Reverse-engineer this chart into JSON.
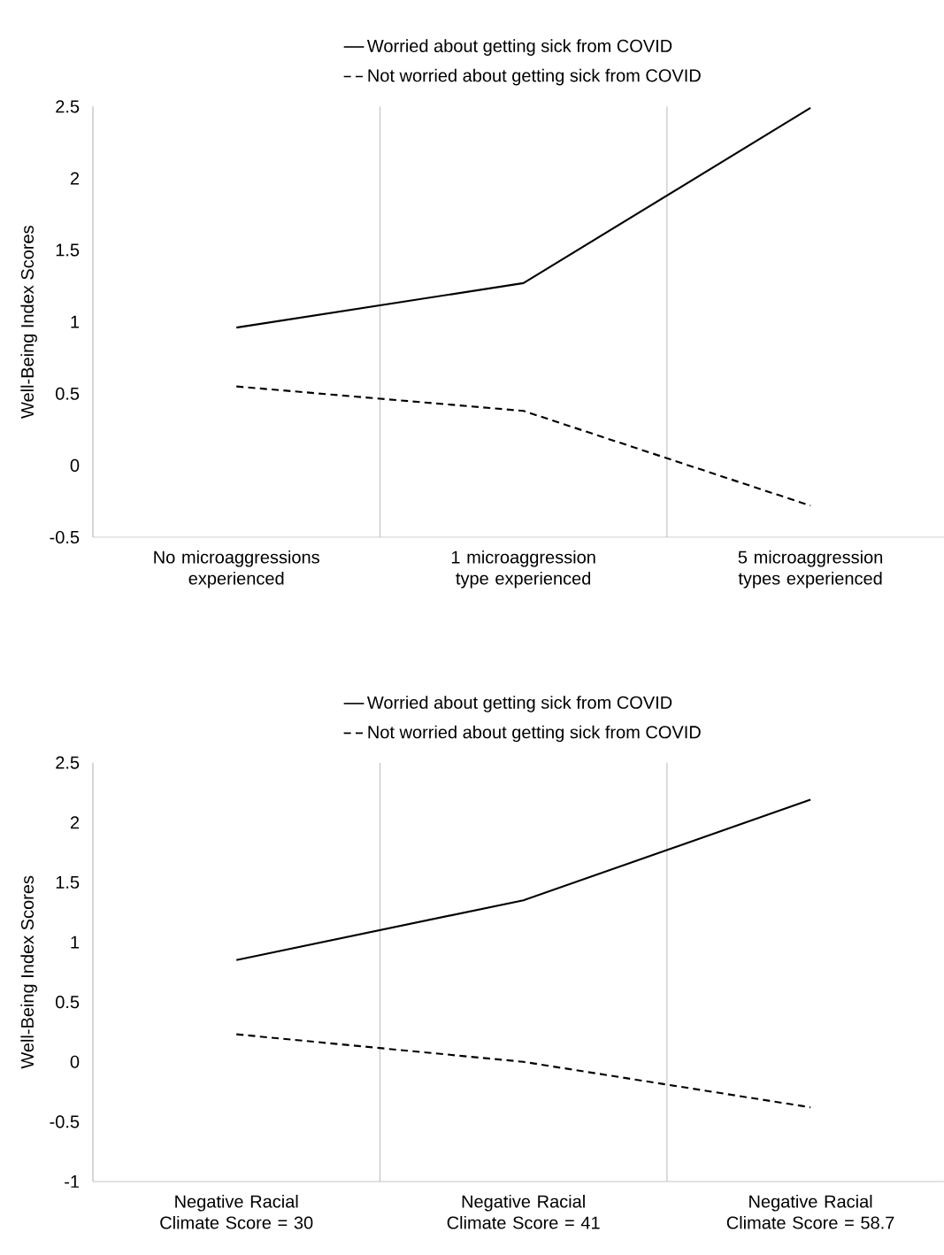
{
  "chart_data": [
    {
      "type": "line",
      "ylabel": "Well-Being Index Scores",
      "categories": [
        "No microaggressions experienced",
        "1 microaggression type experienced",
        "5 microaggression types experienced"
      ],
      "series": [
        {
          "name": "Worried about getting sick from COVID",
          "color": "#000000",
          "line_style": "solid",
          "values": [
            0.96,
            1.27,
            2.49
          ]
        },
        {
          "name": "Not worried about getting sick from COVID",
          "color": "#000000",
          "line_style": "dashed",
          "values": [
            0.55,
            0.38,
            -0.28
          ]
        }
      ],
      "ylim": [
        -0.5,
        2.5
      ],
      "yticks": [
        -0.5,
        0,
        0.5,
        1,
        1.5,
        2,
        2.5
      ],
      "grid": "x",
      "legend": "top"
    },
    {
      "type": "line",
      "ylabel": "Well-Being Index Scores",
      "categories": [
        "Negative Racial Climate Score = 30",
        "Negative Racial Climate Score = 41",
        "Negative Racial Climate Score = 58.7"
      ],
      "series": [
        {
          "name": "Worried about getting sick from COVID",
          "color": "#000000",
          "line_style": "solid",
          "values": [
            0.85,
            1.35,
            2.19
          ]
        },
        {
          "name": "Not worried about getting sick from COVID",
          "color": "#000000",
          "line_style": "dashed",
          "values": [
            0.23,
            0.0,
            -0.38
          ]
        }
      ],
      "ylim": [
        -1,
        2.5
      ],
      "yticks": [
        -1,
        -0.5,
        0,
        0.5,
        1,
        1.5,
        2,
        2.5
      ],
      "grid": "x",
      "legend": "top"
    }
  ]
}
